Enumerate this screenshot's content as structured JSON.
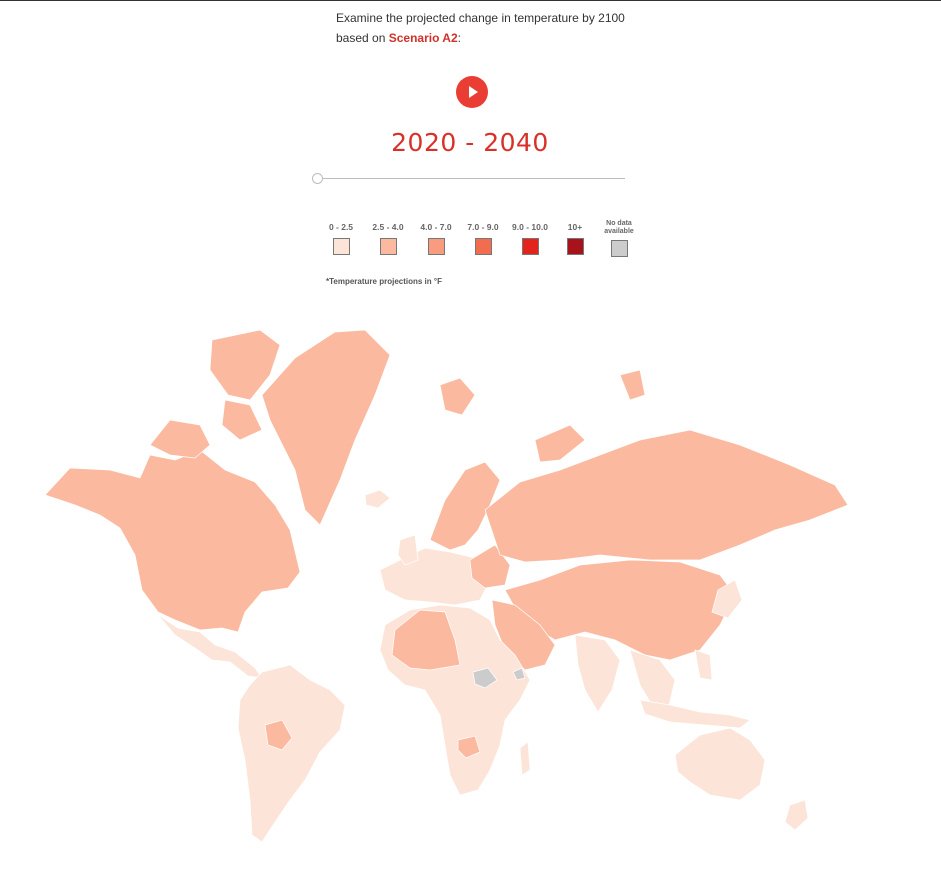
{
  "intro": {
    "text_before": "Examine the projected change in temperature by 2100 based on ",
    "scenario_link": "Scenario A2",
    "text_after": ":"
  },
  "player": {
    "icon": "play-icon",
    "accent": "#ea3e35"
  },
  "period": {
    "label": "2020 - 2040"
  },
  "slider": {
    "position_fraction": 0.0
  },
  "legend": {
    "items": [
      {
        "label": "0 - 2.5",
        "color": "#fde4d8"
      },
      {
        "label": "2.5 - 4.0",
        "color": "#fbb9a0"
      },
      {
        "label": "4.0 - 7.0",
        "color": "#f89b7f"
      },
      {
        "label": "7.0 - 9.0",
        "color": "#f26c4f"
      },
      {
        "label": "9.0 - 10.0",
        "color": "#e3241c"
      },
      {
        "label": "10+",
        "color": "#a8121a"
      },
      {
        "label": "No data available",
        "color": "#cccccc"
      }
    ],
    "note": "*Temperature projections in °F"
  },
  "map": {
    "colors": {
      "light": "#fde4d8",
      "medium": "#fbb9a0",
      "nodata": "#cccccc"
    }
  }
}
